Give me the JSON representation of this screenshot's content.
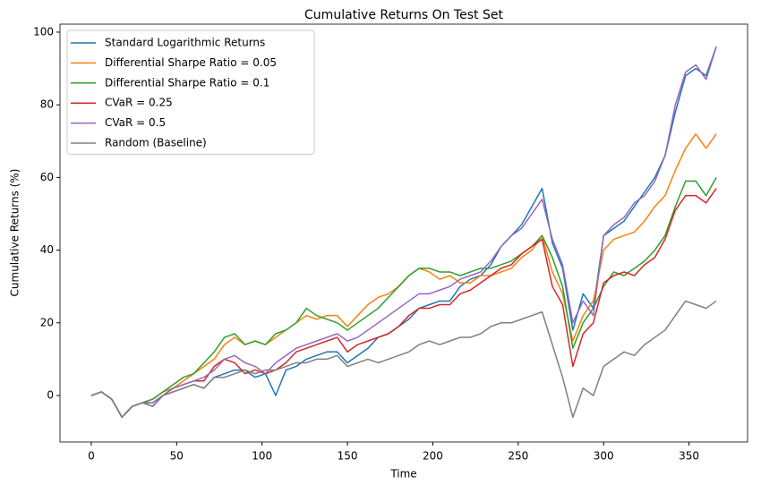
{
  "chart_data": {
    "type": "line",
    "title": "Cumulative Returns On Test Set",
    "x_label": "Time",
    "y_label": "Cumulative Returns (%)",
    "x": [
      0,
      6,
      12,
      18,
      24,
      30,
      36,
      42,
      48,
      54,
      60,
      66,
      72,
      78,
      84,
      90,
      96,
      102,
      108,
      114,
      120,
      126,
      132,
      138,
      144,
      150,
      156,
      162,
      168,
      174,
      180,
      186,
      192,
      198,
      204,
      210,
      216,
      222,
      228,
      234,
      240,
      246,
      252,
      258,
      264,
      270,
      276,
      282,
      288,
      294,
      300,
      306,
      312,
      318,
      324,
      330,
      336,
      342,
      348,
      354,
      360,
      366
    ],
    "series": [
      {
        "name": "Standard Logarithmic Returns",
        "color": "#1f77b4",
        "values": [
          0,
          1,
          -1,
          -6,
          -3,
          -2,
          -3,
          0,
          1,
          2,
          3,
          2,
          5,
          6,
          7,
          7,
          5,
          6,
          0,
          7,
          8,
          10,
          11,
          12,
          12,
          9,
          11,
          13,
          16,
          17,
          19,
          21,
          24,
          25,
          26,
          26,
          30,
          32,
          33,
          36,
          41,
          44,
          47,
          52,
          57,
          42,
          35,
          18,
          28,
          24,
          44,
          46,
          48,
          52,
          56,
          60,
          66,
          78,
          88,
          90,
          88,
          96
        ]
      },
      {
        "name": "Differential Sharpe Ratio = 0.05",
        "color": "#ff7f0e",
        "values": [
          0,
          1,
          -1,
          -6,
          -3,
          -2,
          -1,
          1,
          2,
          4,
          6,
          8,
          10,
          14,
          16,
          14,
          15,
          14,
          16,
          18,
          20,
          22,
          21,
          22,
          22,
          19,
          22,
          25,
          27,
          28,
          30,
          33,
          35,
          34,
          32,
          33,
          31,
          31,
          33,
          33,
          34,
          35,
          38,
          40,
          44,
          34,
          28,
          15,
          22,
          26,
          40,
          43,
          44,
          45,
          48,
          52,
          55,
          62,
          68,
          72,
          68,
          72
        ]
      },
      {
        "name": "Differential Sharpe Ratio = 0.1",
        "color": "#2ca02c",
        "values": [
          0,
          1,
          -1,
          -6,
          -3,
          -2,
          -1,
          1,
          3,
          5,
          6,
          9,
          12,
          16,
          17,
          14,
          15,
          14,
          17,
          18,
          20,
          24,
          22,
          21,
          20,
          18,
          20,
          22,
          24,
          27,
          30,
          33,
          35,
          35,
          34,
          34,
          33,
          34,
          35,
          35,
          36,
          37,
          39,
          41,
          44,
          38,
          30,
          13,
          20,
          24,
          30,
          34,
          33,
          35,
          37,
          40,
          44,
          52,
          59,
          59,
          55,
          60
        ]
      },
      {
        "name": "CVaR = 0.25",
        "color": "#d62728",
        "values": [
          0,
          1,
          -1,
          -6,
          -3,
          -2,
          -2,
          0,
          2,
          3,
          4,
          4,
          8,
          10,
          9,
          6,
          7,
          6,
          7,
          9,
          12,
          13,
          14,
          15,
          16,
          12,
          14,
          15,
          16,
          17,
          19,
          22,
          24,
          24,
          25,
          25,
          28,
          29,
          31,
          33,
          35,
          36,
          39,
          41,
          43,
          30,
          25,
          8,
          17,
          20,
          31,
          33,
          34,
          33,
          36,
          38,
          43,
          51,
          55,
          55,
          53,
          57
        ]
      },
      {
        "name": "CVaR = 0.5",
        "color": "#9467bd",
        "values": [
          0,
          1,
          -1,
          -6,
          -3,
          -2,
          -2,
          0,
          2,
          3,
          4,
          5,
          7,
          10,
          11,
          9,
          8,
          6,
          9,
          11,
          13,
          14,
          15,
          16,
          17,
          15,
          16,
          18,
          20,
          22,
          24,
          26,
          28,
          28,
          29,
          30,
          32,
          33,
          34,
          37,
          41,
          44,
          46,
          50,
          54,
          43,
          36,
          20,
          26,
          22,
          44,
          47,
          49,
          53,
          55,
          59,
          66,
          80,
          89,
          91,
          87,
          96
        ]
      },
      {
        "name": "Random (Baseline)",
        "color": "#7f7f7f",
        "values": [
          0,
          1,
          -1,
          -6,
          -3,
          -2,
          -3,
          0,
          1,
          2,
          3,
          2,
          5,
          5,
          6,
          7,
          6,
          7,
          7,
          8,
          9,
          9,
          10,
          10,
          11,
          8,
          9,
          10,
          9,
          10,
          11,
          12,
          14,
          15,
          14,
          15,
          16,
          16,
          17,
          19,
          20,
          20,
          21,
          22,
          23,
          14,
          5,
          -6,
          2,
          0,
          8,
          10,
          12,
          11,
          14,
          16,
          18,
          22,
          26,
          25,
          24,
          26
        ]
      }
    ],
    "xlim": [
      -18.3,
      384.3
    ],
    "ylim": [
      -12.8,
      102.2
    ],
    "xticks": [
      0,
      50,
      100,
      150,
      200,
      250,
      300,
      350
    ],
    "yticks": [
      0,
      20,
      40,
      60,
      80,
      100
    ],
    "legend": "upper left",
    "grid": false
  }
}
